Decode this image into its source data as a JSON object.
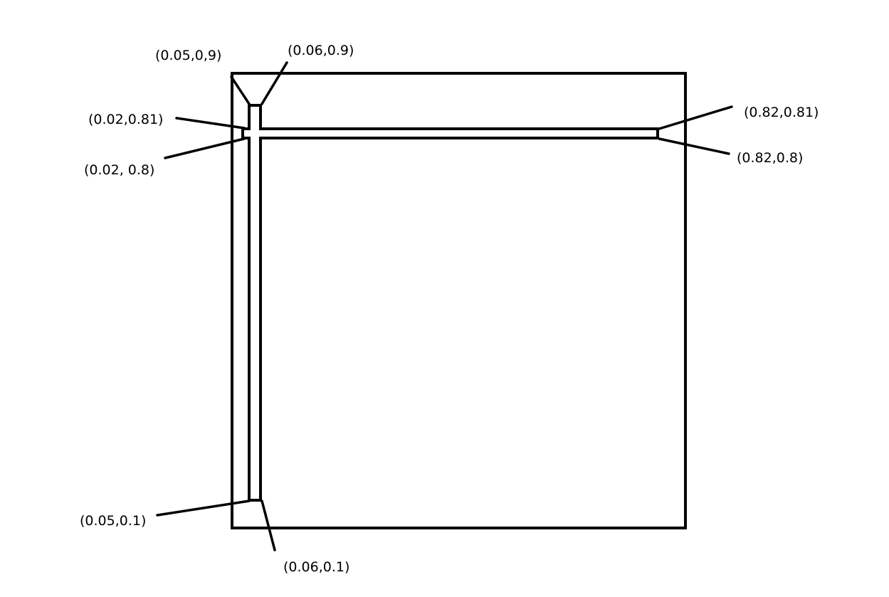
{
  "labels": {
    "top_left_outer": "(0.05,0,9)",
    "top_left_inner": "(0.06,0.9)",
    "left_upper": "(0.02,0.81)",
    "left_lower": "(0.02, 0.8)",
    "right_upper": "(0.82,0.81)",
    "right_lower": "(0.82,0.8)",
    "bottom_left_outer": "(0.05,0.1)",
    "bottom_left_inner": "(0.06,0.1)"
  },
  "colors": {
    "stroke": "#000000",
    "background": "#ffffff"
  }
}
